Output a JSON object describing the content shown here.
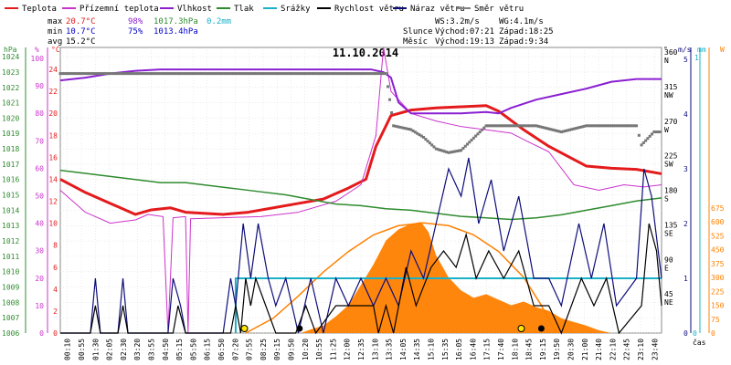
{
  "legend": [
    {
      "label": "Teplota",
      "color": "#e41a1c"
    },
    {
      "label": "Přízemní teplota",
      "color": "#cc33cc"
    },
    {
      "label": "Vlhkost",
      "color": "#8a1fd1"
    },
    {
      "label": "Tlak",
      "color": "#2e8b2e"
    },
    {
      "label": "Srážky",
      "color": "#1ab0c8"
    },
    {
      "label": "Rychlost větru",
      "color": "#000000"
    },
    {
      "label": "Náraz větru",
      "color": "#0d0d7a"
    },
    {
      "label": "Směr větru",
      "color": "#808080"
    }
  ],
  "stats": {
    "max_label": "max",
    "max_temp": "20.7°C",
    "max_hum": "98%",
    "max_press": "1017.3hPa",
    "max_rain": "0.2mm",
    "min_label": "min",
    "min_temp": "10.7°C",
    "min_hum": "75%",
    "min_press": "1013.4hPa",
    "avg_label": "avg",
    "avg_temp": "15.2°C"
  },
  "wind_info": {
    "ws": "WS:3.2m/s",
    "wg": "WG:4.1m/s"
  },
  "sun_info": {
    "label": "Slunce",
    "rise": "Východ:07:21",
    "set": "Západ:18:25"
  },
  "moon_info": {
    "label": "Měsíc",
    "rise": "Východ:19:13",
    "set": "Západ:9:34"
  },
  "chart_data": {
    "type": "line",
    "title": "11.10.2014",
    "xlabel": "čas",
    "x_ticks": [
      "00:10",
      "00:55",
      "01:30",
      "02:05",
      "02:30",
      "03:20",
      "03:55",
      "04:50",
      "05:15",
      "05:50",
      "06:15",
      "06:50",
      "07:20",
      "07:55",
      "08:25",
      "09:15",
      "09:50",
      "10:20",
      "10:55",
      "11:25",
      "12:00",
      "12:35",
      "13:10",
      "13:35",
      "14:05",
      "14:35",
      "15:10",
      "15:35",
      "16:05",
      "16:40",
      "17:15",
      "17:40",
      "18:10",
      "18:45",
      "19:15",
      "19:50",
      "20:30",
      "21:00",
      "21:40",
      "22:10",
      "22:45",
      "23:10",
      "23:40"
    ],
    "axes": {
      "hpa": {
        "label": "hPa",
        "ticks": [
          1006,
          1007,
          1008,
          1009,
          1010,
          1011,
          1012,
          1013,
          1014,
          1015,
          1016,
          1017,
          1018,
          1019,
          1020,
          1021,
          1022,
          1023,
          1024
        ],
        "color": "#2e8b2e"
      },
      "pct": {
        "label": "%",
        "ticks": [
          0,
          10,
          20,
          30,
          40,
          50,
          60,
          70,
          80,
          90,
          100
        ],
        "color": "#cc33cc"
      },
      "temp": {
        "label": "°C",
        "ticks": [
          0,
          2,
          4,
          6,
          8,
          10,
          12,
          14,
          16,
          18,
          20,
          22,
          24
        ],
        "color": "#e41a1c"
      },
      "dir": {
        "label": "°",
        "ticks": [
          {
            "v": 45,
            "t": "NE"
          },
          {
            "v": 90,
            "t": "E"
          },
          {
            "v": 135,
            "t": "SE"
          },
          {
            "v": 180,
            "t": "S"
          },
          {
            "v": 225,
            "t": "SW"
          },
          {
            "v": 270,
            "t": "W"
          },
          {
            "v": 315,
            "t": "NW"
          },
          {
            "v": 360,
            "t": "N"
          }
        ],
        "color": "#000000"
      },
      "ms": {
        "label": "m/s",
        "ticks": [
          0,
          1,
          2,
          3,
          4,
          5
        ],
        "color": "#0d0d7a"
      },
      "mm": {
        "label": "mm",
        "ticks": [
          0,
          1
        ],
        "color": "#1ab0c8"
      },
      "wm2": {
        "label": "W",
        "ticks": [
          0,
          75,
          150,
          225,
          300,
          375,
          450,
          525,
          600,
          675
        ],
        "color": "#ff8000"
      }
    },
    "series": [
      {
        "name": "Teplota",
        "color": "#e41a1c",
        "width": 3,
        "axis": "temp",
        "points": [
          [
            0,
            14
          ],
          [
            1,
            12.8
          ],
          [
            2,
            11.8
          ],
          [
            3,
            10.8
          ],
          [
            3.6,
            11.2
          ],
          [
            4.4,
            11.4
          ],
          [
            5,
            11
          ],
          [
            6.5,
            10.8
          ],
          [
            7.5,
            11
          ],
          [
            8.5,
            11.4
          ],
          [
            9.5,
            11.8
          ],
          [
            10.5,
            12.2
          ],
          [
            11.5,
            13.2
          ],
          [
            12.2,
            14
          ],
          [
            12.6,
            17
          ],
          [
            13.2,
            19.8
          ],
          [
            14,
            20.3
          ],
          [
            15,
            20.5
          ],
          [
            16,
            20.6
          ],
          [
            17,
            20.7
          ],
          [
            17.5,
            20.2
          ],
          [
            18.5,
            18.5
          ],
          [
            19.5,
            17
          ],
          [
            20.5,
            15.8
          ],
          [
            21,
            15.2
          ],
          [
            22,
            15
          ],
          [
            23,
            14.9
          ],
          [
            24,
            14.5
          ]
        ]
      },
      {
        "name": "Přízemní teplota",
        "color": "#cc33cc",
        "width": 1,
        "axis": "temp",
        "points": [
          [
            0,
            13
          ],
          [
            1,
            11
          ],
          [
            2,
            10
          ],
          [
            3,
            10.3
          ],
          [
            3.5,
            10.8
          ],
          [
            4.1,
            10.6
          ],
          [
            4.3,
            0
          ],
          [
            4.5,
            10.5
          ],
          [
            5,
            10.6
          ],
          [
            5.1,
            0
          ],
          [
            5.2,
            10.4
          ],
          [
            6.5,
            10.5
          ],
          [
            8,
            10.6
          ],
          [
            9.5,
            11
          ],
          [
            11,
            12
          ],
          [
            12,
            13.5
          ],
          [
            12.6,
            18
          ],
          [
            12.9,
            26
          ],
          [
            13.2,
            22
          ],
          [
            14,
            20
          ],
          [
            15,
            19.3
          ],
          [
            16,
            18.8
          ],
          [
            17,
            18.5
          ],
          [
            18,
            18.2
          ],
          [
            18.6,
            17.5
          ],
          [
            19.5,
            16.5
          ],
          [
            20.5,
            13.5
          ],
          [
            21.5,
            13
          ],
          [
            22.5,
            13.5
          ],
          [
            23.3,
            13.3
          ],
          [
            24,
            13.5
          ]
        ]
      },
      {
        "name": "Vlhkost",
        "color": "#8a1fd1",
        "width": 2,
        "axis": "pct",
        "points": [
          [
            0,
            92
          ],
          [
            1,
            93
          ],
          [
            2,
            94.5
          ],
          [
            3,
            95.5
          ],
          [
            4,
            96
          ],
          [
            6,
            96
          ],
          [
            8,
            96
          ],
          [
            10,
            96
          ],
          [
            11.5,
            96
          ],
          [
            12.4,
            96
          ],
          [
            12.9,
            95
          ],
          [
            13.2,
            93
          ],
          [
            13.5,
            84
          ],
          [
            14,
            80
          ],
          [
            15,
            80
          ],
          [
            16,
            80
          ],
          [
            17,
            80.5
          ],
          [
            17.5,
            80
          ],
          [
            18,
            82
          ],
          [
            19,
            85
          ],
          [
            20,
            87
          ],
          [
            21,
            89
          ],
          [
            22,
            91.5
          ],
          [
            23,
            92.5
          ],
          [
            24,
            92.5
          ]
        ]
      },
      {
        "name": "Tlak",
        "color": "#2e8b2e",
        "width": 1.5,
        "axis": "hpa",
        "points": [
          [
            0,
            1016.6
          ],
          [
            1,
            1016.4
          ],
          [
            2,
            1016.2
          ],
          [
            3,
            1016
          ],
          [
            4,
            1015.8
          ],
          [
            5,
            1015.8
          ],
          [
            6,
            1015.6
          ],
          [
            7,
            1015.4
          ],
          [
            8,
            1015.2
          ],
          [
            9,
            1015
          ],
          [
            10,
            1014.7
          ],
          [
            11,
            1014.4
          ],
          [
            12,
            1014.3
          ],
          [
            13,
            1014.1
          ],
          [
            14,
            1014
          ],
          [
            15,
            1013.8
          ],
          [
            16,
            1013.6
          ],
          [
            17,
            1013.5
          ],
          [
            18,
            1013.4
          ],
          [
            19,
            1013.5
          ],
          [
            20,
            1013.7
          ],
          [
            21,
            1014
          ],
          [
            22,
            1014.3
          ],
          [
            23,
            1014.6
          ],
          [
            24,
            1014.8
          ]
        ]
      }
    ],
    "rain_total_mm": 0.2,
    "rain_from_h": 7.0,
    "wind_speed": [
      [
        0,
        0
      ],
      [
        1.2,
        0
      ],
      [
        1.4,
        0.5
      ],
      [
        1.6,
        0
      ],
      [
        2.3,
        0
      ],
      [
        2.5,
        0.5
      ],
      [
        2.7,
        0
      ],
      [
        4.5,
        0
      ],
      [
        4.7,
        0.5
      ],
      [
        5,
        0
      ],
      [
        6.8,
        0
      ],
      [
        7,
        0.5
      ],
      [
        7.2,
        0
      ],
      [
        7.4,
        1
      ],
      [
        7.6,
        0.5
      ],
      [
        7.8,
        1
      ],
      [
        8.2,
        0.5
      ],
      [
        8.6,
        0
      ],
      [
        9.4,
        0
      ],
      [
        9.8,
        0.5
      ],
      [
        10.2,
        0
      ],
      [
        11,
        0.5
      ],
      [
        12,
        0.5
      ],
      [
        12.5,
        0.5
      ],
      [
        12.7,
        0
      ],
      [
        13,
        0.5
      ],
      [
        13.3,
        0
      ],
      [
        13.8,
        1.2
      ],
      [
        14.2,
        0.5
      ],
      [
        14.8,
        1.2
      ],
      [
        15.3,
        1.5
      ],
      [
        15.8,
        1.2
      ],
      [
        16.2,
        1.8
      ],
      [
        16.6,
        1
      ],
      [
        17.1,
        1.5
      ],
      [
        17.7,
        1
      ],
      [
        18.3,
        1.5
      ],
      [
        18.9,
        0.5
      ],
      [
        19.5,
        0.5
      ],
      [
        20,
        0
      ],
      [
        20.8,
        1
      ],
      [
        21.3,
        0.5
      ],
      [
        21.8,
        1
      ],
      [
        22.3,
        0
      ],
      [
        23.2,
        0.5
      ],
      [
        23.5,
        2
      ],
      [
        23.8,
        1.5
      ],
      [
        24,
        0.5
      ]
    ],
    "wind_gust": [
      [
        0,
        0
      ],
      [
        1.2,
        0
      ],
      [
        1.4,
        1
      ],
      [
        1.6,
        0
      ],
      [
        2.3,
        0
      ],
      [
        2.5,
        1
      ],
      [
        2.7,
        0
      ],
      [
        4.3,
        0
      ],
      [
        4.5,
        1
      ],
      [
        4.8,
        0.5
      ],
      [
        5,
        0
      ],
      [
        6.5,
        0
      ],
      [
        6.8,
        1
      ],
      [
        7,
        0.5
      ],
      [
        7.3,
        2
      ],
      [
        7.6,
        1
      ],
      [
        7.9,
        2
      ],
      [
        8.3,
        1
      ],
      [
        8.6,
        0.5
      ],
      [
        9,
        1
      ],
      [
        9.5,
        0
      ],
      [
        10,
        1
      ],
      [
        10.5,
        0
      ],
      [
        11,
        1
      ],
      [
        11.5,
        0.5
      ],
      [
        12,
        1
      ],
      [
        12.5,
        0.5
      ],
      [
        13,
        1
      ],
      [
        13.5,
        0.5
      ],
      [
        14,
        1.5
      ],
      [
        14.5,
        1
      ],
      [
        15,
        2
      ],
      [
        15.5,
        3
      ],
      [
        16,
        2.5
      ],
      [
        16.3,
        3.2
      ],
      [
        16.7,
        2
      ],
      [
        17.2,
        2.8
      ],
      [
        17.7,
        1.5
      ],
      [
        18.3,
        2.5
      ],
      [
        18.9,
        1
      ],
      [
        19.5,
        1
      ],
      [
        20,
        0.5
      ],
      [
        20.7,
        2
      ],
      [
        21.2,
        1
      ],
      [
        21.7,
        2
      ],
      [
        22.2,
        0.5
      ],
      [
        23,
        1
      ],
      [
        23.3,
        3
      ],
      [
        23.6,
        2.5
      ],
      [
        24,
        1
      ]
    ],
    "wind_dir": [
      [
        0,
        338
      ],
      [
        6,
        338
      ],
      [
        12,
        338
      ],
      [
        13,
        338
      ],
      [
        13.3,
        270
      ],
      [
        14,
        265
      ],
      [
        14.5,
        255
      ],
      [
        15,
        240
      ],
      [
        15.5,
        235
      ],
      [
        16,
        238
      ],
      [
        17,
        270
      ],
      [
        18,
        270
      ],
      [
        19,
        270
      ],
      [
        20,
        262
      ],
      [
        21,
        270
      ],
      [
        22,
        270
      ],
      [
        22.5,
        270
      ],
      [
        23,
        270
      ],
      [
        23.2,
        245
      ],
      [
        23.7,
        262
      ],
      [
        24,
        262
      ]
    ],
    "solar": [
      [
        0,
        0
      ],
      [
        9.6,
        0
      ],
      [
        10,
        20
      ],
      [
        10.5,
        40
      ],
      [
        11,
        90
      ],
      [
        11.5,
        150
      ],
      [
        12,
        260
      ],
      [
        12.5,
        370
      ],
      [
        13,
        500
      ],
      [
        13.5,
        560
      ],
      [
        14,
        590
      ],
      [
        14.4,
        600
      ],
      [
        14.7,
        545
      ],
      [
        15,
        420
      ],
      [
        15.5,
        300
      ],
      [
        16,
        230
      ],
      [
        16.5,
        190
      ],
      [
        17,
        210
      ],
      [
        17.5,
        180
      ],
      [
        18,
        150
      ],
      [
        18.5,
        170
      ],
      [
        19,
        140
      ],
      [
        19.5,
        120
      ],
      [
        20,
        80
      ],
      [
        20.5,
        60
      ],
      [
        21,
        40
      ],
      [
        21.5,
        15
      ],
      [
        22,
        0
      ],
      [
        24,
        0
      ]
    ],
    "solar_clear": [
      [
        7.4,
        0
      ],
      [
        8.5,
        80
      ],
      [
        9.5,
        200
      ],
      [
        10.5,
        330
      ],
      [
        11.5,
        440
      ],
      [
        12.5,
        530
      ],
      [
        13.5,
        580
      ],
      [
        14.5,
        595
      ],
      [
        15.5,
        580
      ],
      [
        16.5,
        530
      ],
      [
        17.5,
        440
      ],
      [
        18.5,
        300
      ],
      [
        19.2,
        150
      ],
      [
        19.8,
        0
      ]
    ],
    "sun_markers": [
      {
        "h": 7.35,
        "color": "#ffe600"
      },
      {
        "h": 18.4,
        "color": "#ffe600"
      }
    ],
    "moon_markers": [
      {
        "h": 9.55,
        "color": "#000000"
      },
      {
        "h": 19.2,
        "color": "#000000"
      }
    ]
  }
}
